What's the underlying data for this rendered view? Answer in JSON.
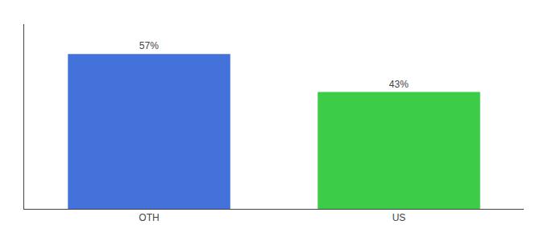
{
  "chart_data": {
    "type": "bar",
    "categories": [
      "OTH",
      "US"
    ],
    "values": [
      57,
      43
    ],
    "value_labels": [
      "57%",
      "43%"
    ],
    "data_labels": true,
    "colors": [
      "#4472db",
      "#3dcc47"
    ],
    "ylim": [
      0,
      68
    ],
    "grid": false,
    "tick_labels": "x"
  }
}
